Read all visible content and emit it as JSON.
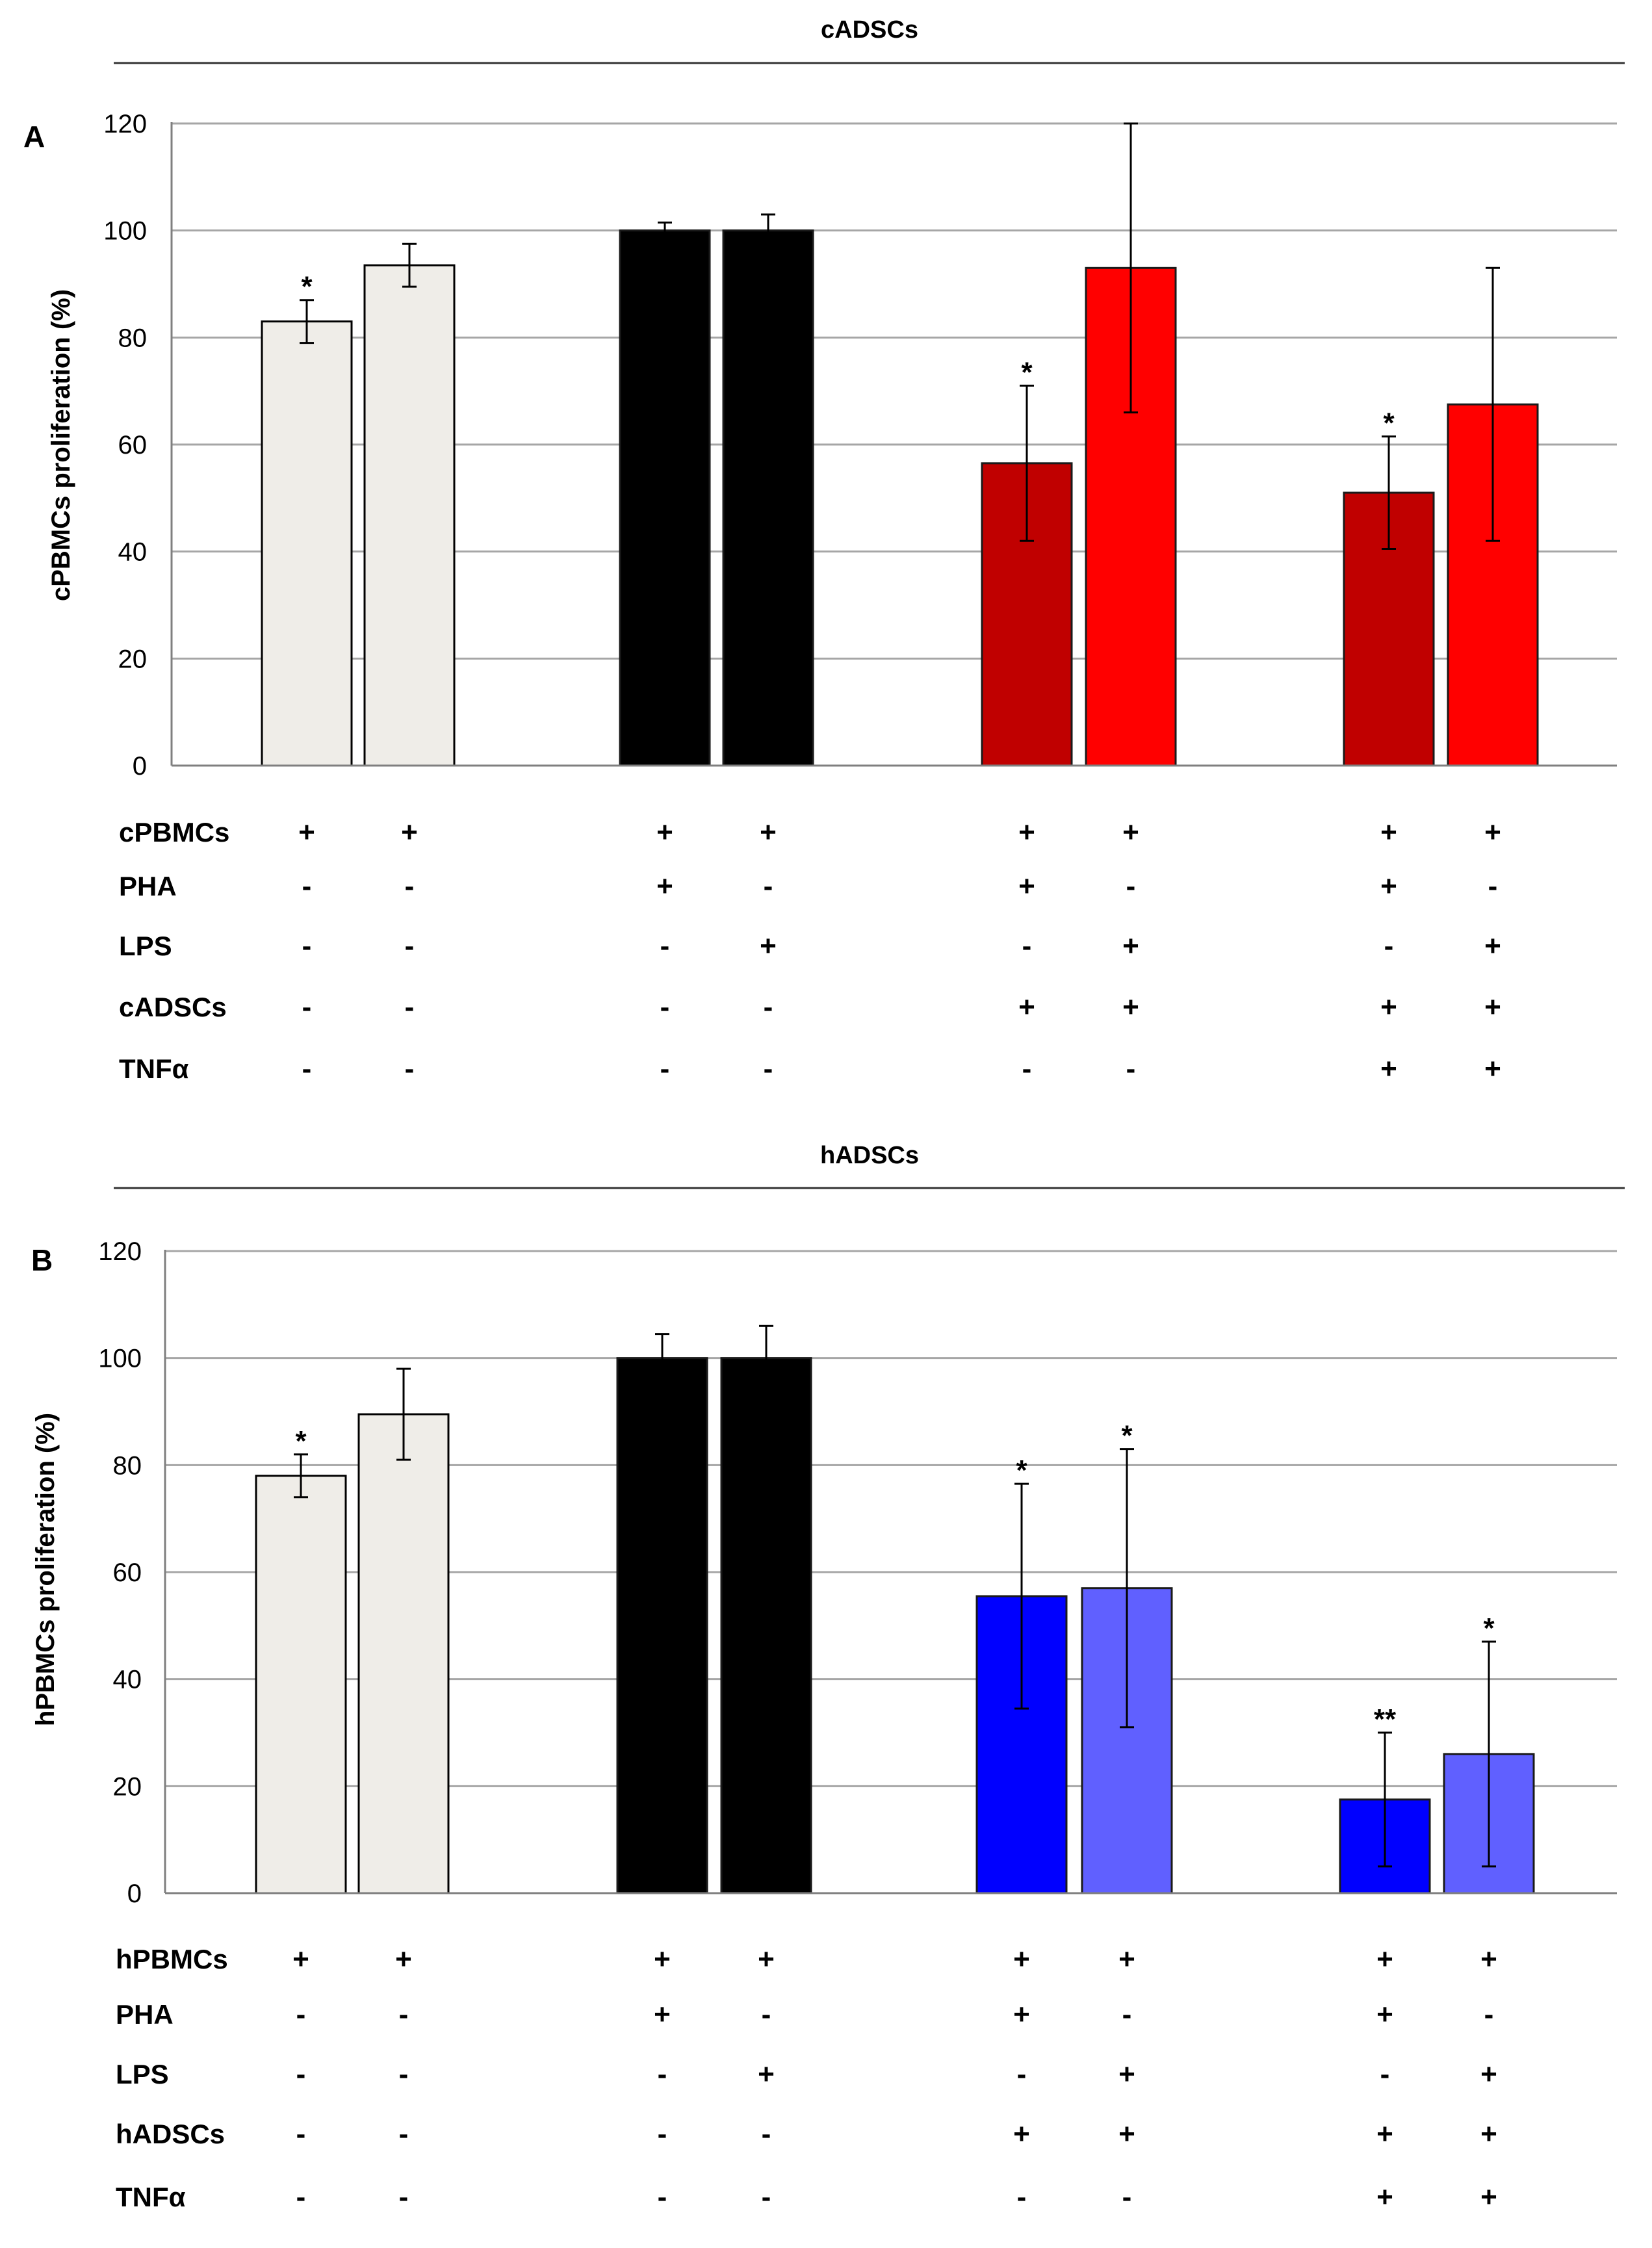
{
  "chart_data": [
    {
      "type": "bar",
      "panel_label": "A",
      "title": "cADSCs",
      "ylabel": "cPBMCs proliferation (%)",
      "xlabel": "",
      "ylim": [
        0,
        120
      ],
      "yticks": [
        0,
        20,
        40,
        60,
        80,
        100,
        120
      ],
      "grid": true,
      "bars": [
        {
          "group": 0,
          "value": 83,
          "error": 4,
          "sig": "*",
          "color": "#efede8"
        },
        {
          "group": 0,
          "value": 93.5,
          "error": 4,
          "sig": "",
          "color": "#efede8"
        },
        {
          "group": 1,
          "value": 100,
          "error": 1.5,
          "sig": "",
          "color": "#000000"
        },
        {
          "group": 1,
          "value": 100,
          "error": 3,
          "sig": "",
          "color": "#000000"
        },
        {
          "group": 2,
          "value": 56.5,
          "error": 14.5,
          "sig": "*",
          "color": "#c00000"
        },
        {
          "group": 2,
          "value": 93,
          "error": 27,
          "sig": "",
          "color": "#ff0000"
        },
        {
          "group": 3,
          "value": 51,
          "error": 10.5,
          "sig": "*",
          "color": "#c00000"
        },
        {
          "group": 3,
          "value": 67.5,
          "error": 25.5,
          "sig": "",
          "color": "#ff0000"
        }
      ],
      "condition_rows": [
        {
          "label": "cPBMCs",
          "values": [
            "+",
            "+",
            "+",
            "+",
            "+",
            "+",
            "+",
            "+"
          ]
        },
        {
          "label": "PHA",
          "values": [
            "-",
            "-",
            "+",
            "-",
            "+",
            "-",
            "+",
            "-"
          ]
        },
        {
          "label": "LPS",
          "values": [
            "-",
            "-",
            "-",
            "+",
            "-",
            "+",
            "-",
            "+"
          ]
        },
        {
          "label": "cADSCs",
          "values": [
            "-",
            "-",
            "-",
            "-",
            "+",
            "+",
            "+",
            "+"
          ]
        },
        {
          "label": "TNFα",
          "values": [
            "-",
            "-",
            "-",
            "-",
            "-",
            "-",
            "+",
            "+"
          ]
        }
      ]
    },
    {
      "type": "bar",
      "panel_label": "B",
      "title": "hADSCs",
      "ylabel": "hPBMCs proliferation (%)",
      "xlabel": "",
      "ylim": [
        0,
        120
      ],
      "yticks": [
        0,
        20,
        40,
        60,
        80,
        100,
        120
      ],
      "grid": true,
      "bars": [
        {
          "group": 0,
          "value": 78,
          "error": 4,
          "sig": "*",
          "color": "#efede8"
        },
        {
          "group": 0,
          "value": 89.5,
          "error": 8.5,
          "sig": "",
          "color": "#efede8"
        },
        {
          "group": 1,
          "value": 100,
          "error": 4.5,
          "sig": "",
          "color": "#000000"
        },
        {
          "group": 1,
          "value": 100,
          "error": 6,
          "sig": "",
          "color": "#000000"
        },
        {
          "group": 2,
          "value": 55.5,
          "error": 21,
          "sig": "*",
          "color": "#0000ff"
        },
        {
          "group": 2,
          "value": 57,
          "error": 26,
          "sig": "*",
          "color": "#6060ff"
        },
        {
          "group": 3,
          "value": 17.5,
          "error": 12.5,
          "sig": "**",
          "color": "#0000ff"
        },
        {
          "group": 3,
          "value": 26,
          "error": 21,
          "sig": "*",
          "color": "#6060ff"
        }
      ],
      "condition_rows": [
        {
          "label": "hPBMCs",
          "values": [
            "+",
            "+",
            "+",
            "+",
            "+",
            "+",
            "+",
            "+"
          ]
        },
        {
          "label": "PHA",
          "values": [
            "-",
            "-",
            "+",
            "-",
            "+",
            "-",
            "+",
            "-"
          ]
        },
        {
          "label": "LPS",
          "values": [
            "-",
            "-",
            "-",
            "+",
            "-",
            "+",
            "-",
            "+"
          ]
        },
        {
          "label": "hADSCs",
          "values": [
            "-",
            "-",
            "-",
            "-",
            "+",
            "+",
            "+",
            "+"
          ]
        },
        {
          "label": "TNFα",
          "values": [
            "-",
            "-",
            "-",
            "-",
            "-",
            "-",
            "+",
            "+"
          ]
        }
      ]
    }
  ]
}
